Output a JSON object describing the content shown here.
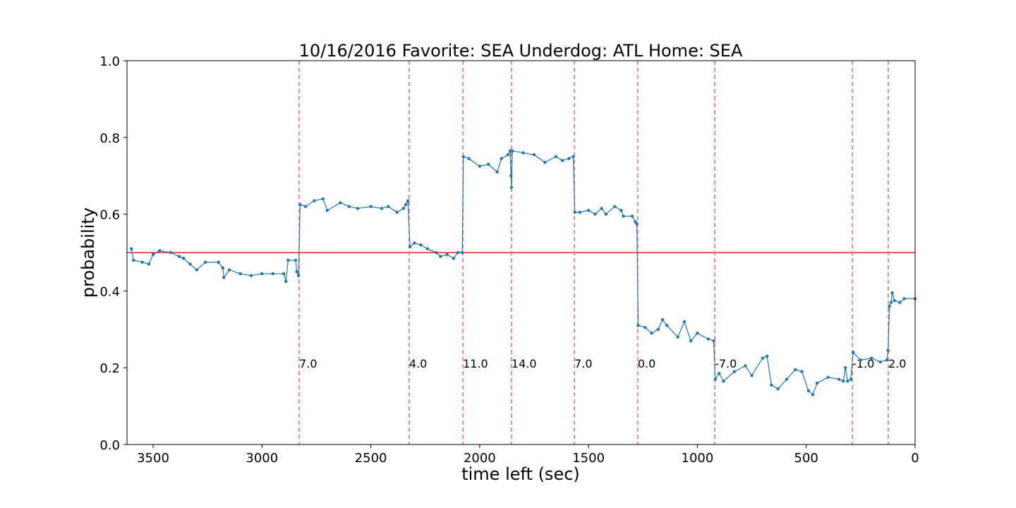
{
  "chart_data": {
    "type": "line",
    "title": "10/16/2016 Favorite: SEA Underdog: ATL Home: SEA",
    "xlabel": "time left (sec)",
    "ylabel": "probability",
    "xlim": [
      3620,
      0
    ],
    "ylim": [
      0,
      1
    ],
    "xticks": [
      3500,
      3000,
      2500,
      2000,
      1500,
      1000,
      500,
      0
    ],
    "yticks": [
      {
        "value": 0,
        "label": "0.0"
      },
      0.2,
      0.4,
      0.6,
      0.8,
      {
        "value": 1,
        "label": "1.0"
      }
    ],
    "series": [
      {
        "color": "#1f77b4",
        "x": [
          3600,
          3590,
          3550,
          3520,
          3500,
          3470,
          3420,
          3380,
          3360,
          3330,
          3300,
          3260,
          3200,
          3180,
          3175,
          3150,
          3100,
          3050,
          3000,
          2950,
          2900,
          2890,
          2880,
          2845,
          2840,
          2832,
          2825,
          2800,
          2760,
          2720,
          2700,
          2640,
          2600,
          2560,
          2500,
          2450,
          2420,
          2380,
          2350,
          2340,
          2330,
          2320,
          2300,
          2270,
          2240,
          2200,
          2180,
          2150,
          2120,
          2100,
          2080,
          2075,
          2050,
          2000,
          1960,
          1920,
          1900,
          1870,
          1860,
          1856,
          1854,
          1850,
          1800,
          1750,
          1700,
          1650,
          1620,
          1590,
          1570,
          1563,
          1540,
          1500,
          1470,
          1440,
          1420,
          1380,
          1350,
          1340,
          1300,
          1285,
          1278,
          1272,
          1240,
          1210,
          1180,
          1160,
          1140,
          1090,
          1060,
          1030,
          1000,
          950,
          925,
          918,
          900,
          880,
          830,
          780,
          750,
          700,
          680,
          660,
          630,
          590,
          550,
          520,
          490,
          470,
          450,
          400,
          350,
          330,
          320,
          310,
          295,
          285,
          250,
          200,
          160,
          130,
          124,
          118,
          110,
          105,
          95,
          70,
          50,
          0
        ],
        "values": [
          0.51,
          0.48,
          0.475,
          0.47,
          0.495,
          0.505,
          0.5,
          0.49,
          0.485,
          0.47,
          0.455,
          0.475,
          0.475,
          0.46,
          0.435,
          0.455,
          0.445,
          0.44,
          0.445,
          0.445,
          0.445,
          0.425,
          0.48,
          0.48,
          0.45,
          0.44,
          0.625,
          0.62,
          0.635,
          0.64,
          0.61,
          0.63,
          0.62,
          0.615,
          0.62,
          0.615,
          0.62,
          0.605,
          0.615,
          0.625,
          0.635,
          0.515,
          0.525,
          0.52,
          0.51,
          0.5,
          0.49,
          0.495,
          0.485,
          0.5,
          0.5,
          0.75,
          0.745,
          0.725,
          0.73,
          0.71,
          0.745,
          0.755,
          0.765,
          0.7,
          0.67,
          0.765,
          0.76,
          0.755,
          0.735,
          0.75,
          0.74,
          0.745,
          0.75,
          0.605,
          0.605,
          0.61,
          0.6,
          0.615,
          0.6,
          0.62,
          0.61,
          0.595,
          0.595,
          0.58,
          0.575,
          0.31,
          0.305,
          0.29,
          0.3,
          0.325,
          0.31,
          0.28,
          0.32,
          0.27,
          0.29,
          0.275,
          0.27,
          0.17,
          0.185,
          0.165,
          0.19,
          0.205,
          0.18,
          0.225,
          0.23,
          0.155,
          0.145,
          0.17,
          0.195,
          0.19,
          0.14,
          0.13,
          0.16,
          0.175,
          0.17,
          0.165,
          0.2,
          0.165,
          0.17,
          0.24,
          0.22,
          0.225,
          0.215,
          0.22,
          0.245,
          0.36,
          0.37,
          0.395,
          0.375,
          0.37,
          0.38,
          0.38
        ]
      }
    ],
    "hlines": [
      {
        "y": 0.5,
        "color": "#e8221c"
      }
    ],
    "vline_color": "#f26a66",
    "vline_label_y": 0.2,
    "vlines": [
      {
        "x": 2829,
        "label": "7.0"
      },
      {
        "x": 2324,
        "label": "4.0"
      },
      {
        "x": 2077,
        "label": "11.0"
      },
      {
        "x": 1854,
        "label": "14.0"
      },
      {
        "x": 1565,
        "label": "7.0"
      },
      {
        "x": 1274,
        "label": "0.0"
      },
      {
        "x": 920,
        "label": "-7.0"
      },
      {
        "x": 288,
        "label": "-1.0"
      },
      {
        "x": 123,
        "label": "2.0"
      }
    ]
  }
}
